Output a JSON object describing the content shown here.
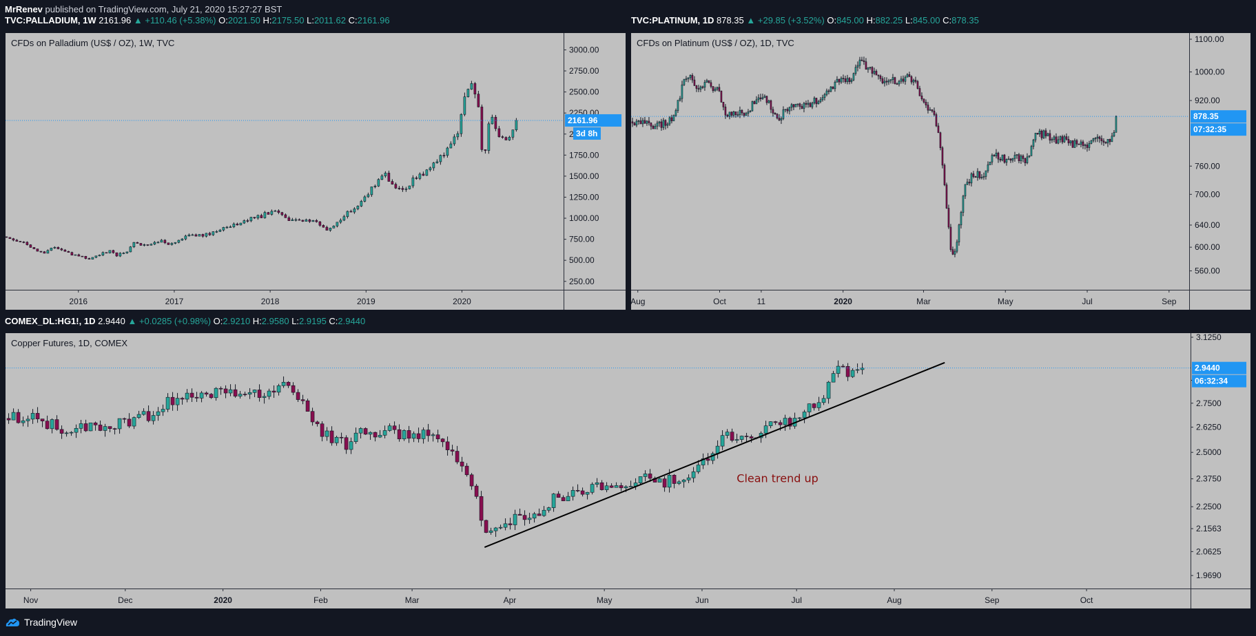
{
  "publisher": {
    "author": "MrRenev",
    "text": "published on TradingView.com, July 21, 2020 15:27:27 BST"
  },
  "footer": {
    "brand": "TradingView"
  },
  "panels": {
    "palladium": {
      "symbol": "TVC:PALLADIUM, 1W",
      "last": "2161.96",
      "change": "▲ +110.46 (+5.38%)",
      "o": "2021.50",
      "h": "2175.50",
      "l": "2011.62",
      "c": "2161.96",
      "title": "CFDs on Palladium (US$ / OZ), 1W, TVC",
      "price_badge": "2161.96",
      "countdown": "3d 8h"
    },
    "platinum": {
      "symbol": "TVC:PLATINUM, 1D",
      "last": "878.35",
      "change": "▲ +29.85 (+3.52%)",
      "o": "845.00",
      "h": "882.25",
      "l": "845.00",
      "c": "878.35",
      "title": "CFDs on Platinum (US$ / OZ), 1D, TVC",
      "price_badge": "878.35",
      "countdown": "07:32:35"
    },
    "copper": {
      "symbol": "COMEX_DL:HG1!, 1D",
      "last": "2.9440",
      "change": "▲ +0.0285 (+0.98%)",
      "o": "2.9210",
      "h": "2.9580",
      "l": "2.9195",
      "c": "2.9440",
      "title": "Copper Futures, 1D, COMEX",
      "price_badge": "2.9440",
      "countdown": "06:32:34",
      "annotation": "Clean trend up"
    }
  },
  "colors": {
    "background": "#131722",
    "plot_bg": "#c0c0c0",
    "up": "#26a69a",
    "down": "#880e4f",
    "badge": "#2196f3",
    "annotation": "#880e0e"
  },
  "chart_data": [
    {
      "id": "palladium",
      "type": "candlestick",
      "title": "CFDs on Palladium (US$ / OZ), 1W, TVC",
      "timeframe": "1W",
      "y_scale": "linear",
      "ylim": [
        150,
        3200
      ],
      "y_ticks": [
        250,
        500,
        750,
        1000,
        1250,
        1500,
        1750,
        2000,
        2250,
        2500,
        2750,
        3000
      ],
      "y_tick_labels": [
        "250.00",
        "500.00",
        "750.00",
        "1000.00",
        "1250.00",
        "1500.00",
        "1750.00",
        "2000.00",
        "2250.00",
        "2500.00",
        "2750.00",
        "3000.00"
      ],
      "x_labels": [
        {
          "label": "2016",
          "t": 2016.0
        },
        {
          "label": "2017",
          "t": 2017.0
        },
        {
          "label": "2018",
          "t": 2018.0
        },
        {
          "label": "2019",
          "t": 2019.0
        },
        {
          "label": "2020",
          "t": 2020.0
        }
      ],
      "xlim": [
        2015.24,
        2021.06
      ],
      "close_series": [
        [
          2015.25,
          780
        ],
        [
          2015.35,
          740
        ],
        [
          2015.45,
          700
        ],
        [
          2015.55,
          630
        ],
        [
          2015.65,
          590
        ],
        [
          2015.72,
          640
        ],
        [
          2015.8,
          650
        ],
        [
          2015.88,
          590
        ],
        [
          2015.95,
          560
        ],
        [
          2016.05,
          540
        ],
        [
          2016.12,
          510
        ],
        [
          2016.22,
          570
        ],
        [
          2016.32,
          610
        ],
        [
          2016.4,
          560
        ],
        [
          2016.5,
          600
        ],
        [
          2016.58,
          700
        ],
        [
          2016.65,
          690
        ],
        [
          2016.75,
          680
        ],
        [
          2016.85,
          740
        ],
        [
          2016.92,
          680
        ],
        [
          2017.0,
          720
        ],
        [
          2017.1,
          780
        ],
        [
          2017.2,
          800
        ],
        [
          2017.3,
          790
        ],
        [
          2017.42,
          840
        ],
        [
          2017.5,
          880
        ],
        [
          2017.6,
          920
        ],
        [
          2017.7,
          950
        ],
        [
          2017.8,
          990
        ],
        [
          2017.9,
          1020
        ],
        [
          2018.0,
          1080
        ],
        [
          2018.05,
          1090
        ],
        [
          2018.15,
          1000
        ],
        [
          2018.25,
          960
        ],
        [
          2018.35,
          980
        ],
        [
          2018.45,
          970
        ],
        [
          2018.55,
          900
        ],
        [
          2018.6,
          860
        ],
        [
          2018.68,
          920
        ],
        [
          2018.75,
          1000
        ],
        [
          2018.8,
          1080
        ],
        [
          2018.9,
          1120
        ],
        [
          2019.0,
          1250
        ],
        [
          2019.08,
          1380
        ],
        [
          2019.15,
          1520
        ],
        [
          2019.2,
          1560
        ],
        [
          2019.25,
          1400
        ],
        [
          2019.32,
          1350
        ],
        [
          2019.4,
          1320
        ],
        [
          2019.48,
          1450
        ],
        [
          2019.55,
          1510
        ],
        [
          2019.62,
          1540
        ],
        [
          2019.7,
          1650
        ],
        [
          2019.78,
          1750
        ],
        [
          2019.85,
          1800
        ],
        [
          2019.92,
          1950
        ],
        [
          2019.97,
          2050
        ],
        [
          2020.02,
          2400
        ],
        [
          2020.07,
          2500
        ],
        [
          2020.12,
          2640
        ],
        [
          2020.14,
          2450
        ],
        [
          2020.17,
          2300
        ],
        [
          2020.2,
          1850
        ],
        [
          2020.23,
          1600
        ],
        [
          2020.27,
          2100
        ],
        [
          2020.3,
          2200
        ],
        [
          2020.35,
          2100
        ],
        [
          2020.4,
          1950
        ],
        [
          2020.45,
          1900
        ],
        [
          2020.5,
          1950
        ],
        [
          2020.55,
          2050
        ],
        [
          2020.57,
          2160
        ]
      ],
      "last_price": 2161.96
    },
    {
      "id": "platinum",
      "type": "candlestick",
      "title": "CFDs on Platinum (US$ / OZ), 1D, TVC",
      "timeframe": "1D",
      "y_scale": "log",
      "ylim": [
        530,
        1120
      ],
      "y_ticks": [
        560,
        600,
        640,
        700,
        760,
        920,
        1000,
        1100
      ],
      "y_tick_labels": [
        "560.00",
        "600.00",
        "640.00",
        "700.00",
        "760.00",
        "920.00",
        "1000.00",
        "1100.00"
      ],
      "x_labels": [
        {
          "label": "Aug",
          "t": 0
        },
        {
          "label": "Oct",
          "t": 61
        },
        {
          "label": "11",
          "t": 92
        },
        {
          "label": "2020",
          "t": 153
        },
        {
          "label": "Mar",
          "t": 213
        },
        {
          "label": "May",
          "t": 274
        },
        {
          "label": "Jul",
          "t": 335
        },
        {
          "label": "Sep",
          "t": 396
        }
      ],
      "x_unit": "days since Aug 1 2019",
      "xlim": [
        -5,
        411
      ],
      "close_series": [
        [
          -4,
          865
        ],
        [
          5,
          862
        ],
        [
          12,
          850
        ],
        [
          20,
          860
        ],
        [
          28,
          880
        ],
        [
          33,
          960
        ],
        [
          38,
          985
        ],
        [
          45,
          960
        ],
        [
          52,
          965
        ],
        [
          60,
          945
        ],
        [
          66,
          880
        ],
        [
          75,
          885
        ],
        [
          82,
          895
        ],
        [
          90,
          925
        ],
        [
          95,
          930
        ],
        [
          100,
          900
        ],
        [
          105,
          875
        ],
        [
          112,
          900
        ],
        [
          120,
          905
        ],
        [
          130,
          915
        ],
        [
          138,
          925
        ],
        [
          145,
          960
        ],
        [
          150,
          975
        ],
        [
          160,
          985
        ],
        [
          165,
          1030
        ],
        [
          170,
          1015
        ],
        [
          178,
          985
        ],
        [
          185,
          975
        ],
        [
          195,
          970
        ],
        [
          200,
          990
        ],
        [
          205,
          975
        ],
        [
          210,
          945
        ],
        [
          215,
          900
        ],
        [
          220,
          880
        ],
        [
          223,
          860
        ],
        [
          227,
          760
        ],
        [
          230,
          680
        ],
        [
          233,
          600
        ],
        [
          236,
          590
        ],
        [
          240,
          640
        ],
        [
          244,
          720
        ],
        [
          250,
          740
        ],
        [
          258,
          740
        ],
        [
          265,
          790
        ],
        [
          270,
          780
        ],
        [
          278,
          770
        ],
        [
          283,
          780
        ],
        [
          290,
          770
        ],
        [
          295,
          830
        ],
        [
          303,
          835
        ],
        [
          310,
          820
        ],
        [
          318,
          825
        ],
        [
          325,
          810
        ],
        [
          332,
          805
        ],
        [
          340,
          820
        ],
        [
          345,
          825
        ],
        [
          350,
          815
        ],
        [
          355,
          840
        ],
        [
          358,
          878
        ]
      ],
      "last_price": 878.35
    },
    {
      "id": "copper",
      "type": "candlestick",
      "title": "Copper Futures, 1D, COMEX",
      "timeframe": "1D",
      "y_scale": "log",
      "ylim": [
        1.92,
        3.15
      ],
      "y_ticks": [
        1.969,
        2.0625,
        2.1563,
        2.25,
        2.375,
        2.5,
        2.625,
        2.75,
        2.875,
        3.125
      ],
      "y_tick_labels": [
        "1.9690",
        "2.0625",
        "2.1563",
        "2.2500",
        "2.3750",
        "2.5000",
        "2.6250",
        "2.7500",
        "2.8750",
        "3.1250"
      ],
      "x_labels": [
        {
          "label": "Nov",
          "t": 0
        },
        {
          "label": "Dec",
          "t": 30
        },
        {
          "label": "2020",
          "t": 61
        },
        {
          "label": "Feb",
          "t": 92
        },
        {
          "label": "Mar",
          "t": 121
        },
        {
          "label": "Apr",
          "t": 152
        },
        {
          "label": "May",
          "t": 182
        },
        {
          "label": "Jun",
          "t": 213
        },
        {
          "label": "Jul",
          "t": 243
        },
        {
          "label": "Aug",
          "t": 274
        },
        {
          "label": "Sep",
          "t": 305
        },
        {
          "label": "Oct",
          "t": 335
        }
      ],
      "x_unit": "days since Nov 1 2019",
      "xlim": [
        -8,
        368
      ],
      "close_series": [
        [
          -7,
          2.67
        ],
        [
          0,
          2.68
        ],
        [
          5,
          2.64
        ],
        [
          10,
          2.62
        ],
        [
          15,
          2.62
        ],
        [
          22,
          2.63
        ],
        [
          28,
          2.64
        ],
        [
          33,
          2.66
        ],
        [
          38,
          2.69
        ],
        [
          43,
          2.76
        ],
        [
          48,
          2.79
        ],
        [
          53,
          2.8
        ],
        [
          58,
          2.81
        ],
        [
          62,
          2.8
        ],
        [
          68,
          2.79
        ],
        [
          75,
          2.82
        ],
        [
          80,
          2.85
        ],
        [
          85,
          2.76
        ],
        [
          88,
          2.7
        ],
        [
          91,
          2.62
        ],
        [
          95,
          2.57
        ],
        [
          100,
          2.54
        ],
        [
          104,
          2.6
        ],
        [
          110,
          2.6
        ],
        [
          114,
          2.61
        ],
        [
          118,
          2.58
        ],
        [
          122,
          2.56
        ],
        [
          126,
          2.6
        ],
        [
          130,
          2.54
        ],
        [
          134,
          2.48
        ],
        [
          137,
          2.46
        ],
        [
          140,
          2.34
        ],
        [
          142,
          2.25
        ],
        [
          144,
          2.16
        ],
        [
          147,
          2.13
        ],
        [
          150,
          2.17
        ],
        [
          155,
          2.22
        ],
        [
          160,
          2.2
        ],
        [
          165,
          2.28
        ],
        [
          170,
          2.3
        ],
        [
          175,
          2.32
        ],
        [
          180,
          2.33
        ],
        [
          185,
          2.35
        ],
        [
          190,
          2.33
        ],
        [
          195,
          2.37
        ],
        [
          200,
          2.36
        ],
        [
          205,
          2.38
        ],
        [
          209,
          2.4
        ],
        [
          212,
          2.43
        ],
        [
          215,
          2.48
        ],
        [
          218,
          2.55
        ],
        [
          222,
          2.58
        ],
        [
          225,
          2.56
        ],
        [
          230,
          2.6
        ],
        [
          235,
          2.63
        ],
        [
          240,
          2.65
        ],
        [
          244,
          2.68
        ],
        [
          248,
          2.73
        ],
        [
          252,
          2.79
        ],
        [
          254,
          2.87
        ],
        [
          256,
          2.94
        ],
        [
          258,
          2.92
        ],
        [
          260,
          2.9
        ],
        [
          262,
          2.91
        ],
        [
          264,
          2.94
        ]
      ],
      "last_price": 2.944,
      "trendline": {
        "p1": [
          144,
          2.08
        ],
        "p2": [
          290,
          2.975
        ]
      },
      "annotation": {
        "text": "Clean trend up",
        "t": 224,
        "price": 2.36
      }
    }
  ]
}
